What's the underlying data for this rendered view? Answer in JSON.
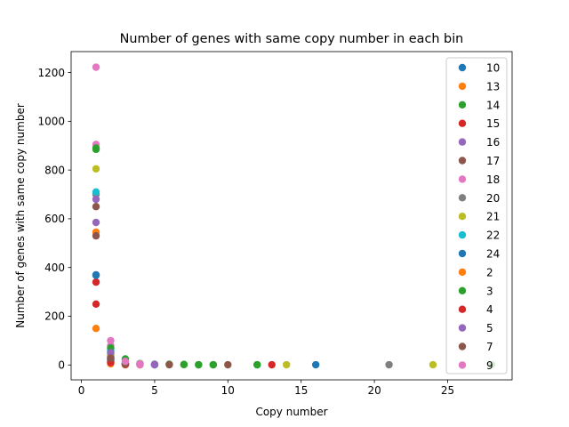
{
  "chart_data": {
    "type": "scatter",
    "title": "Number of genes with same copy number in each bin",
    "xlabel": "Copy number",
    "ylabel": "Number of genes with same copy number",
    "xlim": [
      -0.7,
      29.4
    ],
    "ylim": [
      -61,
      1286
    ],
    "xticks": [
      0,
      5,
      10,
      15,
      20,
      25
    ],
    "yticks": [
      0,
      200,
      400,
      600,
      800,
      1000,
      1200
    ],
    "legend_position": "top-right",
    "series": [
      {
        "name": "10",
        "color": "#1f77b4",
        "points": [
          [
            1,
            370
          ],
          [
            2,
            25
          ],
          [
            3,
            3
          ],
          [
            4,
            1
          ],
          [
            5,
            1
          ],
          [
            16,
            1
          ]
        ]
      },
      {
        "name": "13",
        "color": "#ff7f0e",
        "points": [
          [
            1,
            545
          ],
          [
            2,
            20
          ],
          [
            3,
            4
          ],
          [
            4,
            1
          ]
        ]
      },
      {
        "name": "14",
        "color": "#2ca02c",
        "points": [
          [
            1,
            885
          ],
          [
            2,
            55
          ],
          [
            3,
            22
          ],
          [
            4,
            6
          ],
          [
            6,
            3
          ],
          [
            7,
            2
          ],
          [
            8,
            1
          ],
          [
            9,
            1
          ],
          [
            12,
            1
          ]
        ]
      },
      {
        "name": "15",
        "color": "#d62728",
        "points": [
          [
            1,
            340
          ],
          [
            2,
            15
          ],
          [
            3,
            2
          ],
          [
            13,
            1
          ]
        ]
      },
      {
        "name": "16",
        "color": "#9467bd",
        "points": [
          [
            1,
            585
          ],
          [
            2,
            30
          ],
          [
            3,
            3
          ],
          [
            5,
            1
          ]
        ]
      },
      {
        "name": "17",
        "color": "#8c564b",
        "points": [
          [
            1,
            650
          ],
          [
            2,
            35
          ],
          [
            3,
            5
          ],
          [
            6,
            1
          ],
          [
            10,
            1
          ]
        ]
      },
      {
        "name": "18",
        "color": "#e377c2",
        "points": [
          [
            1,
            905
          ],
          [
            2,
            80
          ],
          [
            3,
            10
          ],
          [
            4,
            2
          ]
        ]
      },
      {
        "name": "20",
        "color": "#7f7f7f",
        "points": [
          [
            1,
            700
          ],
          [
            2,
            40
          ],
          [
            3,
            4
          ],
          [
            21,
            1
          ]
        ]
      },
      {
        "name": "21",
        "color": "#bcbd22",
        "points": [
          [
            1,
            805
          ],
          [
            2,
            45
          ],
          [
            3,
            6
          ],
          [
            14,
            1
          ],
          [
            24,
            1
          ]
        ]
      },
      {
        "name": "22",
        "color": "#17becf",
        "points": [
          [
            1,
            710
          ],
          [
            2,
            60
          ],
          [
            3,
            8
          ]
        ]
      },
      {
        "name": "24",
        "color": "#1f77b4",
        "points": [
          [
            1,
            368
          ],
          [
            2,
            22
          ],
          [
            3,
            3
          ]
        ]
      },
      {
        "name": "2",
        "color": "#ff7f0e",
        "points": [
          [
            1,
            150
          ],
          [
            2,
            5
          ],
          [
            3,
            1
          ]
        ]
      },
      {
        "name": "3",
        "color": "#2ca02c",
        "points": [
          [
            1,
            890
          ],
          [
            2,
            70
          ],
          [
            3,
            25
          ],
          [
            5,
            3
          ],
          [
            7,
            2
          ],
          [
            8,
            1
          ],
          [
            9,
            1
          ],
          [
            12,
            1
          ],
          [
            28,
            1
          ]
        ]
      },
      {
        "name": "4",
        "color": "#d62728",
        "points": [
          [
            1,
            250
          ],
          [
            2,
            10
          ],
          [
            3,
            2
          ]
        ]
      },
      {
        "name": "5",
        "color": "#9467bd",
        "points": [
          [
            1,
            680
          ],
          [
            2,
            50
          ],
          [
            3,
            6
          ],
          [
            5,
            2
          ]
        ]
      },
      {
        "name": "7",
        "color": "#8c564b",
        "points": [
          [
            1,
            530
          ],
          [
            2,
            28
          ],
          [
            3,
            4
          ]
        ]
      },
      {
        "name": "9",
        "color": "#e377c2",
        "points": [
          [
            1,
            1222
          ],
          [
            2,
            100
          ],
          [
            3,
            15
          ],
          [
            4,
            5
          ]
        ]
      }
    ]
  }
}
